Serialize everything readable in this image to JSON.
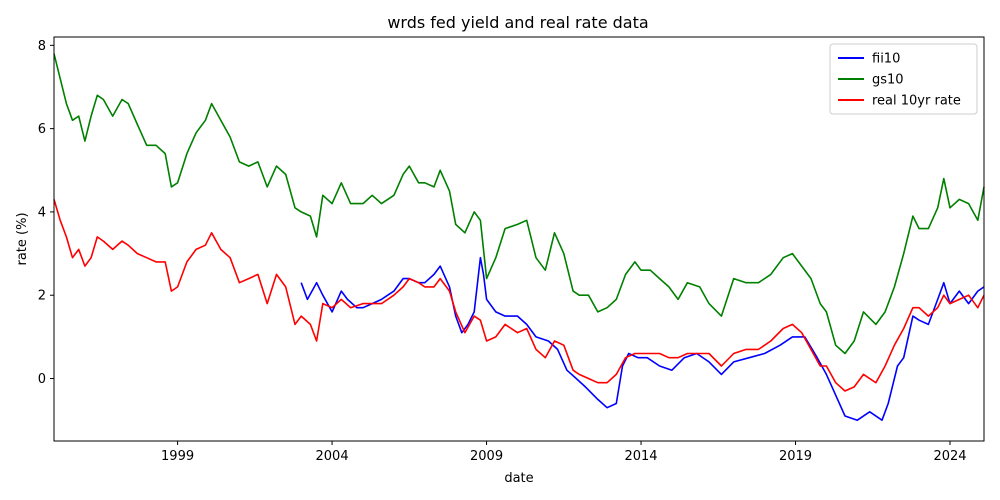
{
  "chart_data": {
    "type": "line",
    "title": "wrds fed yield and real rate data",
    "xlabel": "date",
    "ylabel": "rate (%)",
    "x_unit": "year",
    "xlim": [
      1995.0,
      2025.1
    ],
    "ylim": [
      -1.5,
      8.2
    ],
    "x_ticks": [
      {
        "value": 1999,
        "label": "1999"
      },
      {
        "value": 2004,
        "label": "2004"
      },
      {
        "value": 2009,
        "label": "2009"
      },
      {
        "value": 2014,
        "label": "2014"
      },
      {
        "value": 2019,
        "label": "2019"
      },
      {
        "value": 2024,
        "label": "2024"
      }
    ],
    "y_ticks": [
      {
        "value": 0,
        "label": "0"
      },
      {
        "value": 2,
        "label": "2"
      },
      {
        "value": 4,
        "label": "4"
      },
      {
        "value": 6,
        "label": "6"
      },
      {
        "value": 8,
        "label": "8"
      }
    ],
    "legend_position": "upper right",
    "grid": false,
    "series": [
      {
        "name": "fii10",
        "color": "#0000ff",
        "x": [
          2003.0,
          2003.2,
          2003.5,
          2003.7,
          2004.0,
          2004.3,
          2004.5,
          2004.8,
          2005.0,
          2005.3,
          2005.6,
          2005.8,
          2006.0,
          2006.3,
          2006.5,
          2006.8,
          2007.0,
          2007.3,
          2007.5,
          2007.8,
          2008.0,
          2008.2,
          2008.4,
          2008.6,
          2008.8,
          2008.9,
          2009.0,
          2009.3,
          2009.6,
          2010.0,
          2010.3,
          2010.6,
          2011.0,
          2011.3,
          2011.6,
          2011.9,
          2012.2,
          2012.6,
          2012.9,
          2013.2,
          2013.4,
          2013.6,
          2013.9,
          2014.2,
          2014.6,
          2015.0,
          2015.4,
          2015.8,
          2016.2,
          2016.6,
          2017.0,
          2017.5,
          2018.0,
          2018.5,
          2018.9,
          2019.3,
          2019.7,
          2020.0,
          2020.3,
          2020.6,
          2021.0,
          2021.4,
          2021.8,
          2022.0,
          2022.3,
          2022.5,
          2022.8,
          2023.0,
          2023.3,
          2023.6,
          2023.8,
          2024.0,
          2024.3,
          2024.6,
          2024.9,
          2025.1
        ],
        "values": [
          2.3,
          1.9,
          2.3,
          2.0,
          1.6,
          2.1,
          1.9,
          1.7,
          1.7,
          1.8,
          1.9,
          2.0,
          2.1,
          2.4,
          2.4,
          2.3,
          2.3,
          2.5,
          2.7,
          2.2,
          1.5,
          1.1,
          1.3,
          1.6,
          2.9,
          2.5,
          1.9,
          1.6,
          1.5,
          1.5,
          1.3,
          1.0,
          0.9,
          0.7,
          0.2,
          0.0,
          -0.2,
          -0.5,
          -0.7,
          -0.6,
          0.3,
          0.6,
          0.5,
          0.5,
          0.3,
          0.2,
          0.5,
          0.6,
          0.4,
          0.1,
          0.4,
          0.5,
          0.6,
          0.8,
          1.0,
          1.0,
          0.5,
          0.1,
          -0.4,
          -0.9,
          -1.0,
          -0.8,
          -1.0,
          -0.6,
          0.3,
          0.5,
          1.5,
          1.4,
          1.3,
          1.9,
          2.3,
          1.8,
          2.1,
          1.8,
          2.1,
          2.2
        ]
      },
      {
        "name": "gs10",
        "color": "#008000",
        "x": [
          1995.0,
          1995.2,
          1995.4,
          1995.6,
          1995.8,
          1996.0,
          1996.2,
          1996.4,
          1996.6,
          1996.9,
          1997.2,
          1997.4,
          1997.7,
          1998.0,
          1998.3,
          1998.6,
          1998.8,
          1999.0,
          1999.3,
          1999.6,
          1999.9,
          2000.1,
          2000.4,
          2000.7,
          2001.0,
          2001.3,
          2001.6,
          2001.9,
          2002.2,
          2002.5,
          2002.8,
          2003.0,
          2003.3,
          2003.5,
          2003.7,
          2004.0,
          2004.3,
          2004.6,
          2005.0,
          2005.3,
          2005.6,
          2006.0,
          2006.3,
          2006.5,
          2006.8,
          2007.0,
          2007.3,
          2007.5,
          2007.8,
          2008.0,
          2008.3,
          2008.6,
          2008.8,
          2009.0,
          2009.3,
          2009.6,
          2010.0,
          2010.3,
          2010.6,
          2010.9,
          2011.2,
          2011.5,
          2011.8,
          2012.0,
          2012.3,
          2012.6,
          2012.9,
          2013.2,
          2013.5,
          2013.8,
          2014.0,
          2014.3,
          2014.6,
          2014.9,
          2015.2,
          2015.5,
          2015.9,
          2016.2,
          2016.6,
          2017.0,
          2017.4,
          2017.8,
          2018.2,
          2018.6,
          2018.9,
          2019.2,
          2019.5,
          2019.8,
          2020.0,
          2020.3,
          2020.6,
          2020.9,
          2021.2,
          2021.6,
          2021.9,
          2022.2,
          2022.5,
          2022.8,
          2023.0,
          2023.3,
          2023.6,
          2023.8,
          2024.0,
          2024.3,
          2024.6,
          2024.9,
          2025.1
        ],
        "values": [
          7.8,
          7.2,
          6.6,
          6.2,
          6.3,
          5.7,
          6.3,
          6.8,
          6.7,
          6.3,
          6.7,
          6.6,
          6.1,
          5.6,
          5.6,
          5.4,
          4.6,
          4.7,
          5.4,
          5.9,
          6.2,
          6.6,
          6.2,
          5.8,
          5.2,
          5.1,
          5.2,
          4.6,
          5.1,
          4.9,
          4.1,
          4.0,
          3.9,
          3.4,
          4.4,
          4.2,
          4.7,
          4.2,
          4.2,
          4.4,
          4.2,
          4.4,
          4.9,
          5.1,
          4.7,
          4.7,
          4.6,
          5.0,
          4.5,
          3.7,
          3.5,
          4.0,
          3.8,
          2.4,
          2.9,
          3.6,
          3.7,
          3.8,
          2.9,
          2.6,
          3.5,
          3.0,
          2.1,
          2.0,
          2.0,
          1.6,
          1.7,
          1.9,
          2.5,
          2.8,
          2.6,
          2.6,
          2.4,
          2.2,
          1.9,
          2.3,
          2.2,
          1.8,
          1.5,
          2.4,
          2.3,
          2.3,
          2.5,
          2.9,
          3.0,
          2.7,
          2.4,
          1.8,
          1.6,
          0.8,
          0.6,
          0.9,
          1.6,
          1.3,
          1.6,
          2.2,
          3.0,
          3.9,
          3.6,
          3.6,
          4.1,
          4.8,
          4.1,
          4.3,
          4.2,
          3.8,
          4.6
        ]
      },
      {
        "name": "real 10yr rate",
        "color": "#ff0000",
        "x": [
          1995.0,
          1995.2,
          1995.4,
          1995.6,
          1995.8,
          1996.0,
          1996.2,
          1996.4,
          1996.6,
          1996.9,
          1997.2,
          1997.4,
          1997.7,
          1998.0,
          1998.3,
          1998.6,
          1998.8,
          1999.0,
          1999.3,
          1999.6,
          1999.9,
          2000.1,
          2000.4,
          2000.7,
          2001.0,
          2001.3,
          2001.6,
          2001.9,
          2002.2,
          2002.5,
          2002.8,
          2003.0,
          2003.3,
          2003.5,
          2003.7,
          2004.0,
          2004.3,
          2004.6,
          2005.0,
          2005.3,
          2005.6,
          2006.0,
          2006.3,
          2006.5,
          2006.8,
          2007.0,
          2007.3,
          2007.5,
          2007.8,
          2008.0,
          2008.3,
          2008.6,
          2008.8,
          2009.0,
          2009.3,
          2009.6,
          2010.0,
          2010.3,
          2010.6,
          2010.9,
          2011.2,
          2011.5,
          2011.8,
          2012.0,
          2012.3,
          2012.6,
          2012.9,
          2013.2,
          2013.5,
          2013.8,
          2014.0,
          2014.3,
          2014.6,
          2014.9,
          2015.2,
          2015.5,
          2015.9,
          2016.2,
          2016.6,
          2017.0,
          2017.4,
          2017.8,
          2018.2,
          2018.6,
          2018.9,
          2019.2,
          2019.5,
          2019.8,
          2020.0,
          2020.3,
          2020.6,
          2020.9,
          2021.2,
          2021.6,
          2021.9,
          2022.2,
          2022.5,
          2022.8,
          2023.0,
          2023.3,
          2023.6,
          2023.8,
          2024.0,
          2024.3,
          2024.6,
          2024.9,
          2025.1
        ],
        "values": [
          4.3,
          3.8,
          3.4,
          2.9,
          3.1,
          2.7,
          2.9,
          3.4,
          3.3,
          3.1,
          3.3,
          3.2,
          3.0,
          2.9,
          2.8,
          2.8,
          2.1,
          2.2,
          2.8,
          3.1,
          3.2,
          3.5,
          3.1,
          2.9,
          2.3,
          2.4,
          2.5,
          1.8,
          2.5,
          2.2,
          1.3,
          1.5,
          1.3,
          0.9,
          1.8,
          1.7,
          1.9,
          1.7,
          1.8,
          1.8,
          1.8,
          2.0,
          2.2,
          2.4,
          2.3,
          2.2,
          2.2,
          2.4,
          2.1,
          1.6,
          1.1,
          1.5,
          1.4,
          0.9,
          1.0,
          1.3,
          1.1,
          1.2,
          0.7,
          0.5,
          0.9,
          0.8,
          0.2,
          0.1,
          0.0,
          -0.1,
          -0.1,
          0.1,
          0.5,
          0.6,
          0.6,
          0.6,
          0.6,
          0.5,
          0.5,
          0.6,
          0.6,
          0.6,
          0.3,
          0.6,
          0.7,
          0.7,
          0.9,
          1.2,
          1.3,
          1.1,
          0.7,
          0.3,
          0.3,
          -0.1,
          -0.3,
          -0.2,
          0.1,
          -0.1,
          0.3,
          0.8,
          1.2,
          1.7,
          1.7,
          1.5,
          1.7,
          2.0,
          1.8,
          1.9,
          2.0,
          1.7,
          2.0
        ]
      }
    ]
  }
}
